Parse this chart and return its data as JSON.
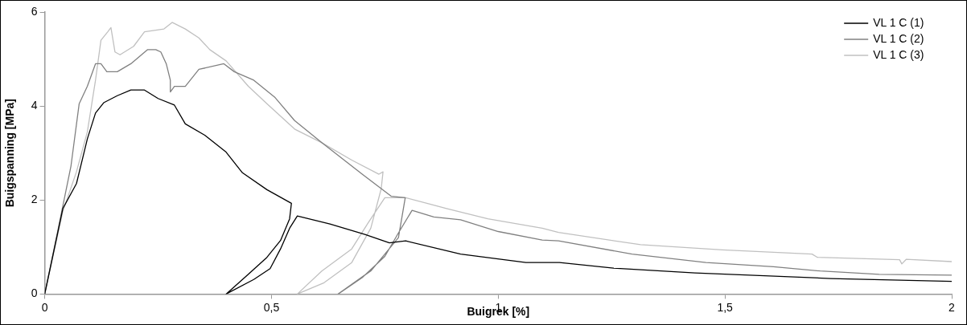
{
  "chart_data": {
    "type": "line",
    "xlabel": "Buigrek [%]",
    "ylabel": "Buigspanning [MPa]",
    "xlim": [
      0,
      2
    ],
    "ylim": [
      0,
      6
    ],
    "xticks": [
      0,
      {
        "value": 0.5,
        "label": "0,5"
      },
      1,
      {
        "value": 1.5,
        "label": "1,5"
      },
      2
    ],
    "yticks": [
      0,
      2,
      4,
      6
    ],
    "grid": false,
    "legend": "top right",
    "marker": "none",
    "line_style": "solid",
    "series": [
      {
        "name": "VL 1 C (1)",
        "color": "#000000",
        "x": [
          0,
          0.04,
          0.07,
          0.094,
          0.112,
          0.13,
          0.16,
          0.19,
          0.22,
          0.25,
          0.286,
          0.31,
          0.353,
          0.4,
          0.436,
          0.49,
          0.544,
          0.54,
          0.52,
          0.49,
          0.449,
          0.4,
          0.461,
          0.497,
          0.52,
          0.54,
          0.557,
          0.629,
          0.706,
          0.76,
          0.796,
          0.917,
          1.061,
          1.135,
          1.254,
          1.434,
          1.733,
          2.0
        ],
        "values": [
          0,
          1.82,
          2.35,
          3.3,
          3.85,
          4.07,
          4.22,
          4.34,
          4.34,
          4.16,
          4.02,
          3.62,
          3.38,
          3.02,
          2.58,
          2.22,
          1.93,
          1.6,
          1.14,
          0.78,
          0.42,
          0,
          0.31,
          0.54,
          0.96,
          1.4,
          1.66,
          1.49,
          1.27,
          1.09,
          1.13,
          0.85,
          0.67,
          0.67,
          0.55,
          0.45,
          0.33,
          0.27
        ]
      },
      {
        "name": "VL 1 C (2)",
        "color": "#808080",
        "x": [
          0,
          0.03,
          0.058,
          0.076,
          0.094,
          0.112,
          0.124,
          0.137,
          0.16,
          0.19,
          0.227,
          0.245,
          0.256,
          0.268,
          0.277,
          0.277,
          0.286,
          0.31,
          0.34,
          0.395,
          0.418,
          0.461,
          0.508,
          0.551,
          0.611,
          0.7,
          0.764,
          0.795,
          0.78,
          0.72,
          0.647,
          0.7,
          0.75,
          0.78,
          0.81,
          0.858,
          0.917,
          1.0,
          1.097,
          1.133,
          1.295,
          1.458,
          1.607,
          1.71,
          1.84,
          2.0
        ],
        "values": [
          0,
          1.4,
          2.73,
          4.05,
          4.42,
          4.9,
          4.9,
          4.73,
          4.73,
          4.9,
          5.2,
          5.2,
          5.15,
          4.9,
          4.55,
          4.3,
          4.42,
          4.42,
          4.78,
          4.9,
          4.73,
          4.55,
          4.18,
          3.69,
          3.22,
          2.55,
          2.08,
          2.05,
          1.2,
          0.5,
          0,
          0.35,
          0.8,
          1.3,
          1.78,
          1.64,
          1.58,
          1.33,
          1.15,
          1.13,
          0.85,
          0.67,
          0.58,
          0.49,
          0.42,
          0.4
        ]
      },
      {
        "name": "VL 1 C (3)",
        "color": "#c0c0c0",
        "x": [
          0,
          0.04,
          0.07,
          0.094,
          0.112,
          0.124,
          0.139,
          0.146,
          0.155,
          0.166,
          0.196,
          0.22,
          0.263,
          0.281,
          0.31,
          0.34,
          0.364,
          0.4,
          0.449,
          0.49,
          0.551,
          0.611,
          0.677,
          0.737,
          0.746,
          0.742,
          0.719,
          0.677,
          0.616,
          0.557,
          0.611,
          0.677,
          0.713,
          0.75,
          0.796,
          0.886,
          0.977,
          1.097,
          1.133,
          1.314,
          1.494,
          1.692,
          1.704,
          1.885,
          1.89,
          1.9,
          2.0
        ],
        "values": [
          0,
          1.76,
          2.6,
          3.45,
          4.55,
          5.4,
          5.58,
          5.67,
          5.15,
          5.09,
          5.27,
          5.58,
          5.64,
          5.78,
          5.64,
          5.45,
          5.2,
          4.96,
          4.42,
          4.05,
          3.51,
          3.22,
          2.85,
          2.55,
          2.6,
          2.24,
          1.4,
          0.67,
          0.24,
          0,
          0.49,
          0.96,
          1.51,
          2.05,
          2.05,
          1.82,
          1.6,
          1.4,
          1.31,
          1.05,
          0.94,
          0.85,
          0.78,
          0.73,
          0.64,
          0.74,
          0.69
        ]
      }
    ]
  }
}
